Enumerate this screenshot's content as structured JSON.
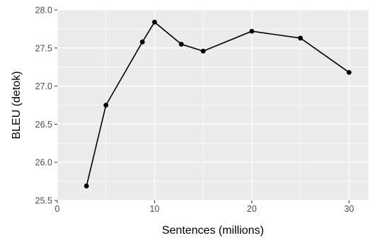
{
  "chart_data": {
    "type": "line",
    "title": "",
    "xlabel": "Sentences (millions)",
    "ylabel": "BLEU (detok)",
    "xlim": [
      0,
      32
    ],
    "ylim": [
      25.5,
      28.0
    ],
    "x_ticks": [
      0,
      10,
      20,
      30
    ],
    "x_tick_labels": [
      "0",
      "10",
      "20",
      "30"
    ],
    "y_ticks": [
      25.5,
      26.0,
      26.5,
      27.0,
      27.5,
      28.0
    ],
    "y_tick_labels": [
      "25.5",
      "26.0",
      "26.5",
      "27.0",
      "27.5",
      "28.0"
    ],
    "grid": true,
    "series": [
      {
        "x": [
          3,
          5,
          8.75,
          10,
          12.75,
          15,
          20,
          25,
          30
        ],
        "y": [
          25.69,
          26.75,
          27.58,
          27.84,
          27.55,
          27.46,
          27.72,
          27.63,
          27.18
        ]
      }
    ],
    "colors": {
      "panel": "#EBEBEB",
      "grid": "#FFFFFF",
      "line": "#000000",
      "tick_text": "#4D4D4D"
    }
  }
}
